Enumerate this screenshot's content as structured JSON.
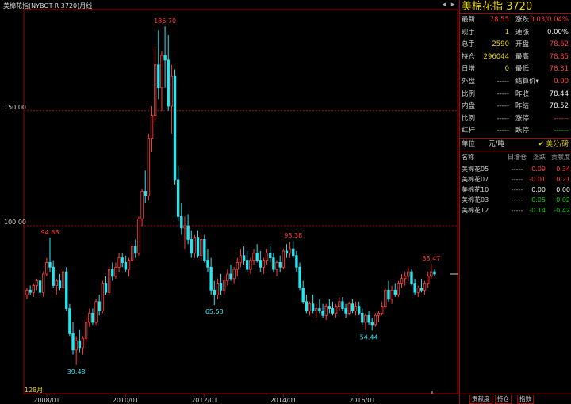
{
  "window": {
    "title": "美棉花指(NYBOT-R 3720)月线",
    "left_arrow": "◂",
    "right_arrow": "▸"
  },
  "chart_data": {
    "type": "candlestick",
    "period_label": "128月",
    "y_ticks": [
      {
        "value": 150,
        "label": "150.00"
      },
      {
        "value": 100,
        "label": "100.00"
      }
    ],
    "ylim": [
      27,
      194
    ],
    "x_ticks": [
      "2008/01",
      "2010/01",
      "2012/01",
      "2014/01",
      "2016/01"
    ],
    "annotations": [
      {
        "label": "94.88",
        "value": 94.88,
        "index": 7,
        "color": "red"
      },
      {
        "label": "39.48",
        "value": 39.48,
        "index": 15,
        "color": "cyan"
      },
      {
        "label": "186.70",
        "value": 186.7,
        "index": 42,
        "color": "red"
      },
      {
        "label": "65.53",
        "value": 65.53,
        "index": 57,
        "color": "cyan"
      },
      {
        "label": "93.38",
        "value": 93.38,
        "index": 81,
        "color": "red"
      },
      {
        "label": "54.44",
        "value": 54.44,
        "index": 104,
        "color": "cyan"
      },
      {
        "label": "83.47",
        "value": 83.47,
        "index": 123,
        "color": "red"
      }
    ],
    "candles": [
      [
        70,
        73,
        68,
        72
      ],
      [
        72,
        74,
        70,
        71
      ],
      [
        71,
        75,
        69,
        74
      ],
      [
        74,
        77,
        72,
        76
      ],
      [
        76,
        78,
        70,
        71
      ],
      [
        71,
        80,
        69,
        79
      ],
      [
        79,
        86,
        78,
        84
      ],
      [
        84,
        94.88,
        80,
        82
      ],
      [
        82,
        85,
        73,
        74
      ],
      [
        74,
        77,
        70,
        76
      ],
      [
        76,
        79,
        72,
        73
      ],
      [
        73,
        81,
        71,
        80
      ],
      [
        80,
        82,
        63,
        64
      ],
      [
        64,
        66,
        52,
        53
      ],
      [
        53,
        58,
        44,
        46
      ],
      [
        46,
        52,
        39.48,
        50
      ],
      [
        50,
        55,
        45,
        47
      ],
      [
        47,
        52,
        44,
        51
      ],
      [
        51,
        60,
        49,
        58
      ],
      [
        58,
        64,
        56,
        62
      ],
      [
        62,
        64,
        57,
        58
      ],
      [
        58,
        68,
        57,
        67
      ],
      [
        67,
        70,
        61,
        63
      ],
      [
        63,
        76,
        62,
        75
      ],
      [
        75,
        78,
        70,
        71
      ],
      [
        71,
        82,
        70,
        81
      ],
      [
        81,
        84,
        76,
        78
      ],
      [
        78,
        84,
        77,
        82
      ],
      [
        82,
        88,
        80,
        86
      ],
      [
        86,
        88,
        82,
        84
      ],
      [
        84,
        87,
        80,
        81
      ],
      [
        81,
        86,
        78,
        85
      ],
      [
        85,
        92,
        84,
        91
      ],
      [
        91,
        94,
        86,
        88
      ],
      [
        88,
        104,
        87,
        103
      ],
      [
        103,
        116,
        100,
        115
      ],
      [
        115,
        124,
        110,
        113
      ],
      [
        113,
        140,
        111,
        138
      ],
      [
        138,
        152,
        132,
        148
      ],
      [
        148,
        178,
        145,
        170
      ],
      [
        170,
        185,
        155,
        160
      ],
      [
        160,
        176,
        150,
        174
      ],
      [
        174,
        186.7,
        160,
        172
      ],
      [
        172,
        183,
        150,
        152
      ],
      [
        152,
        170,
        140,
        165
      ],
      [
        165,
        168,
        118,
        120
      ],
      [
        120,
        126,
        102,
        104
      ],
      [
        104,
        110,
        96,
        99
      ],
      [
        99,
        104,
        90,
        100
      ],
      [
        100,
        105,
        92,
        94
      ],
      [
        94,
        98,
        86,
        88
      ],
      [
        88,
        96,
        86,
        95
      ],
      [
        95,
        98,
        86,
        87
      ],
      [
        87,
        96,
        85,
        94
      ],
      [
        94,
        96,
        84,
        85
      ],
      [
        85,
        90,
        80,
        82
      ],
      [
        82,
        86,
        70,
        72
      ],
      [
        72,
        76,
        65.53,
        70
      ],
      [
        70,
        77,
        68,
        75
      ],
      [
        75,
        79,
        70,
        72
      ],
      [
        72,
        78,
        70,
        76
      ],
      [
        76,
        81,
        74,
        79
      ],
      [
        79,
        83,
        76,
        77
      ],
      [
        77,
        82,
        75,
        81
      ],
      [
        81,
        86,
        78,
        84
      ],
      [
        84,
        90,
        82,
        87
      ],
      [
        87,
        91,
        83,
        85
      ],
      [
        85,
        89,
        80,
        81
      ],
      [
        81,
        86,
        79,
        85
      ],
      [
        85,
        90,
        83,
        88
      ],
      [
        88,
        92,
        84,
        85
      ],
      [
        85,
        89,
        80,
        82
      ],
      [
        82,
        86,
        79,
        85
      ],
      [
        85,
        90,
        83,
        88
      ],
      [
        88,
        91,
        84,
        86
      ],
      [
        86,
        88,
        80,
        81
      ],
      [
        81,
        85,
        78,
        84
      ],
      [
        84,
        87,
        80,
        82
      ],
      [
        82,
        90,
        81,
        89
      ],
      [
        89,
        92,
        86,
        88
      ],
      [
        88,
        93,
        86,
        90
      ],
      [
        90,
        93.38,
        86,
        87
      ],
      [
        87,
        89,
        80,
        82
      ],
      [
        82,
        84,
        72,
        73
      ],
      [
        73,
        76,
        66,
        67
      ],
      [
        67,
        70,
        62,
        63
      ],
      [
        63,
        67,
        61,
        66
      ],
      [
        66,
        70,
        62,
        63
      ],
      [
        63,
        66,
        60,
        64
      ],
      [
        64,
        68,
        62,
        63
      ],
      [
        63,
        66,
        60,
        61
      ],
      [
        61,
        66,
        59,
        65
      ],
      [
        65,
        68,
        62,
        64
      ],
      [
        64,
        67,
        61,
        62
      ],
      [
        62,
        66,
        60,
        65
      ],
      [
        65,
        69,
        63,
        67
      ],
      [
        67,
        69,
        63,
        64
      ],
      [
        64,
        66,
        60,
        62
      ],
      [
        62,
        67,
        61,
        66
      ],
      [
        66,
        68,
        62,
        63
      ],
      [
        63,
        67,
        61,
        65
      ],
      [
        65,
        67,
        61,
        62
      ],
      [
        62,
        64,
        57,
        58
      ],
      [
        58,
        62,
        55,
        61
      ],
      [
        61,
        63,
        57,
        58
      ],
      [
        58,
        60,
        54.44,
        57
      ],
      [
        57,
        62,
        56,
        61
      ],
      [
        61,
        63,
        58,
        62
      ],
      [
        62,
        67,
        61,
        65
      ],
      [
        65,
        73,
        64,
        72
      ],
      [
        72,
        76,
        67,
        68
      ],
      [
        68,
        74,
        66,
        72
      ],
      [
        72,
        75,
        69,
        70
      ],
      [
        70,
        76,
        69,
        75
      ],
      [
        75,
        79,
        73,
        77
      ],
      [
        77,
        80,
        74,
        78
      ],
      [
        78,
        82,
        76,
        80
      ],
      [
        80,
        81,
        74,
        75
      ],
      [
        75,
        77,
        70,
        71
      ],
      [
        71,
        74,
        69,
        73
      ],
      [
        73,
        77,
        71,
        72
      ],
      [
        72,
        76,
        70,
        75
      ],
      [
        75,
        80,
        73,
        78
      ],
      [
        78,
        83.47,
        77,
        80
      ],
      [
        80,
        81,
        78,
        79
      ]
    ]
  },
  "panel": {
    "title": "美棉花指  3720",
    "rows": [
      {
        "l1": "最新",
        "v1": "78.55",
        "c1": "red",
        "l2": "涨跌",
        "v2": "0.03/0.04%",
        "c2": "red"
      },
      {
        "l1": "现手",
        "v1": "1",
        "c1": "yellow",
        "l2": "速涨",
        "v2": "0.00%",
        "c2": "white"
      },
      {
        "l1": "总手",
        "v1": "2590",
        "c1": "yellow",
        "l2": "开盘",
        "v2": "78.62",
        "c2": "red"
      },
      {
        "l1": "持仓",
        "v1": "296044",
        "c1": "yellow",
        "l2": "最高",
        "v2": "78.85",
        "c2": "red"
      },
      {
        "l1": "日增",
        "v1": "0",
        "c1": "yellow",
        "l2": "最低",
        "v2": "78.31",
        "c2": "red"
      },
      {
        "l1": "外盘",
        "v1": "-----",
        "c1": "dim",
        "l2": "结算价▾",
        "v2": "0.00",
        "c2": "red"
      },
      {
        "l1": "比例",
        "v1": "-----",
        "c1": "dim",
        "l2": "昨收",
        "v2": "78.44",
        "c2": "white"
      },
      {
        "l1": "内盘",
        "v1": "-----",
        "c1": "dim",
        "l2": "昨结",
        "v2": "78.52",
        "c2": "white"
      },
      {
        "l1": "比例",
        "v1": "-----",
        "c1": "dim",
        "l2": "涨停",
        "v2": "------",
        "c2": "red"
      },
      {
        "l1": "红杆",
        "v1": "-----",
        "c1": "dim",
        "l2": "跌停",
        "v2": "------",
        "c2": "green"
      }
    ],
    "unit_label": "单位",
    "unit_value": "元/吨",
    "unit_toggle": "✔ 美分/磅",
    "comp_headers": [
      "名称",
      "日增仓",
      "涨跌",
      "贡献度"
    ],
    "components": [
      {
        "name": "美棉花05",
        "inc": "-----",
        "chg": "0.09",
        "contrib": "0.34",
        "color": "red"
      },
      {
        "name": "美棉花07",
        "inc": "-----",
        "chg": "-0.01",
        "contrib": "0.21",
        "color": "red",
        "chg_color": "red"
      },
      {
        "name": "美棉花10",
        "inc": "-----",
        "chg": "0.00",
        "contrib": "0.00",
        "color": "white"
      },
      {
        "name": "美棉花03",
        "inc": "-----",
        "chg": "0.05",
        "contrib": "-0.02",
        "color": "green"
      },
      {
        "name": "美棉花12",
        "inc": "-----",
        "chg": "-0.14",
        "contrib": "-0.42",
        "color": "green"
      }
    ],
    "tabs": [
      "贡献度",
      "持仓",
      "指数"
    ]
  }
}
